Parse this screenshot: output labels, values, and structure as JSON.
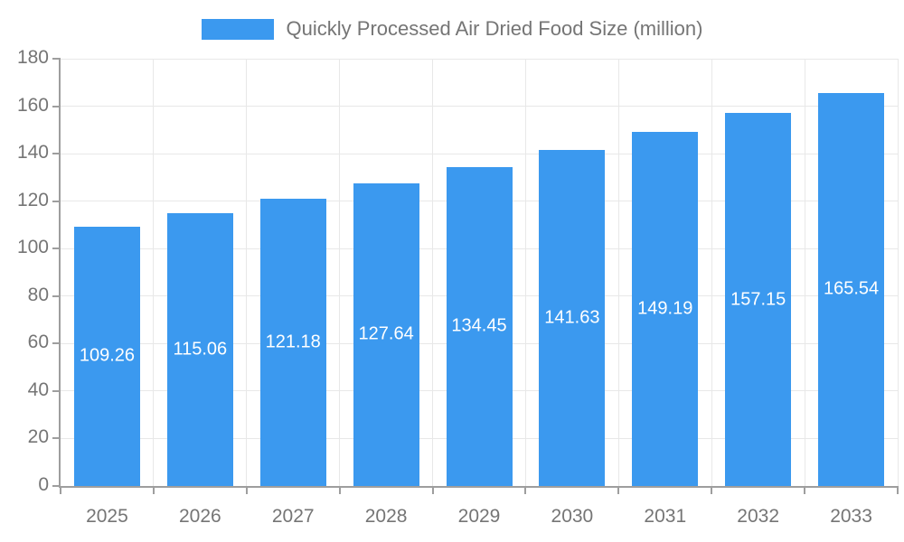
{
  "chart_data": {
    "type": "bar",
    "title": "Quickly Processed Air Dried Food Size (million)",
    "legend": [
      "Quickly Processed Air Dried Food Size (million)"
    ],
    "legend_position": "top",
    "categories": [
      "2025",
      "2026",
      "2027",
      "2028",
      "2029",
      "2030",
      "2031",
      "2032",
      "2033"
    ],
    "series": [
      {
        "name": "Quickly Processed Air Dried Food Size (million)",
        "values": [
          109.26,
          115.06,
          121.18,
          127.64,
          134.45,
          141.63,
          149.19,
          157.15,
          165.54
        ]
      }
    ],
    "value_label_decimals": 2,
    "xlabel": "",
    "ylabel": "",
    "ylim": [
      0,
      180
    ],
    "y_ticks": [
      0,
      20,
      40,
      60,
      80,
      100,
      120,
      140,
      160,
      180
    ],
    "grid": true,
    "colors": {
      "bar": "#3b99ef",
      "axis_line": "#9e9e9e",
      "grid_line": "#e8e8e8",
      "tick_label": "#757575",
      "value_label": "#ffffff",
      "background": "#ffffff"
    }
  }
}
